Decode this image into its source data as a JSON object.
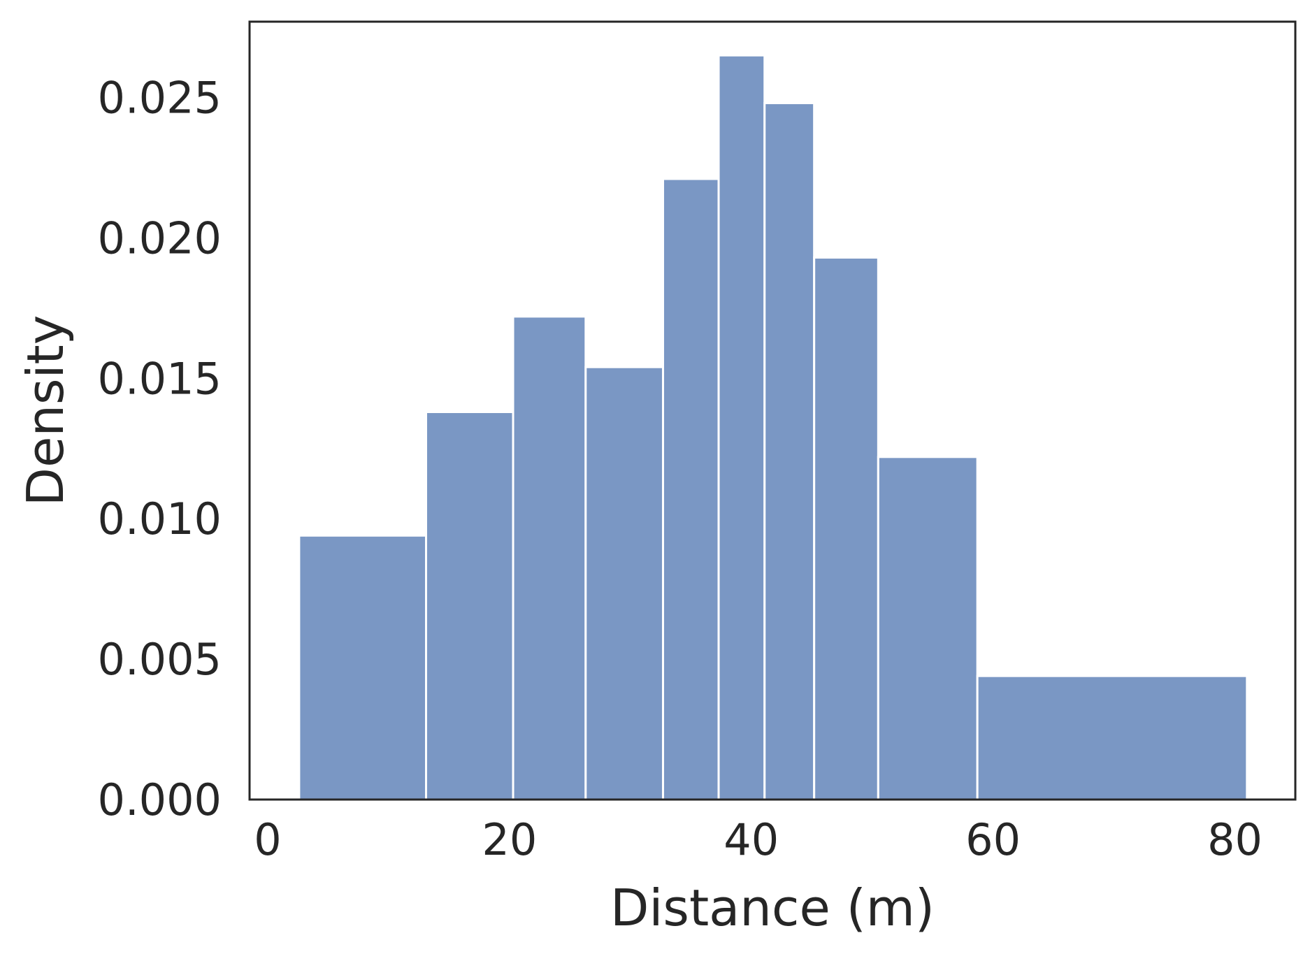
{
  "chart_data": {
    "type": "bar",
    "subtype": "histogram",
    "xlabel": "Distance (m)",
    "ylabel": "Density",
    "xlim": [
      -1.5,
      85
    ],
    "ylim": [
      0,
      0.0277
    ],
    "xticks": [
      0,
      20,
      40,
      60,
      80
    ],
    "yticks": [
      0.0,
      0.005,
      0.01,
      0.015,
      0.02,
      0.025
    ],
    "xtick_labels": [
      "0",
      "20",
      "40",
      "60",
      "80"
    ],
    "ytick_labels": [
      "0.000",
      "0.005",
      "0.010",
      "0.015",
      "0.020",
      "0.025"
    ],
    "bins": [
      {
        "x0": 2.6,
        "x1": 13.1,
        "density": 0.0094
      },
      {
        "x0": 13.1,
        "x1": 20.3,
        "density": 0.0138
      },
      {
        "x0": 20.3,
        "x1": 26.3,
        "density": 0.0172
      },
      {
        "x0": 26.3,
        "x1": 32.7,
        "density": 0.0154
      },
      {
        "x0": 32.7,
        "x1": 37.3,
        "density": 0.0221
      },
      {
        "x0": 37.3,
        "x1": 41.1,
        "density": 0.0265
      },
      {
        "x0": 41.1,
        "x1": 45.2,
        "density": 0.0248
      },
      {
        "x0": 45.2,
        "x1": 50.5,
        "density": 0.0193
      },
      {
        "x0": 50.5,
        "x1": 58.7,
        "density": 0.0122
      },
      {
        "x0": 58.7,
        "x1": 81.0,
        "density": 0.0044
      }
    ],
    "grid": false,
    "colors": {
      "bar_fill": "#7a97c4",
      "bar_edge": "#ffffff",
      "axes": "#262626",
      "text": "#262626"
    }
  }
}
